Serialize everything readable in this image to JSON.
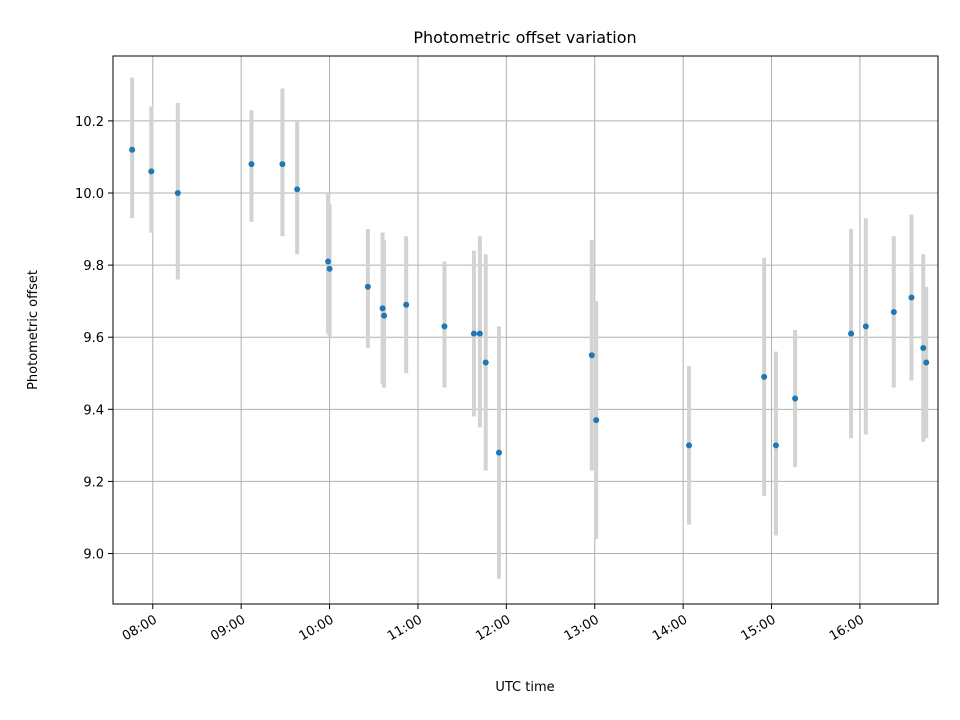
{
  "chart_data": {
    "type": "scatter",
    "title": "Photometric offset variation",
    "xlabel": "UTC time",
    "ylabel": "Photometric offset",
    "xlim": [
      "07:33",
      "16:53"
    ],
    "ylim": [
      8.86,
      10.38
    ],
    "grid": true,
    "xticks": [
      "08:00",
      "09:00",
      "10:00",
      "11:00",
      "12:00",
      "13:00",
      "14:00",
      "15:00",
      "16:00"
    ],
    "yticks": [
      9.0,
      9.2,
      9.4,
      9.6,
      9.8,
      10.0,
      10.2
    ],
    "ytick_labels": [
      "9.0",
      "9.2",
      "9.4",
      "9.6",
      "9.8",
      "10.0",
      "10.2"
    ],
    "series": [
      {
        "marker_color": "#1f77b4",
        "errorbar_color": "#d3d3d3",
        "points": [
          {
            "x": "07:46",
            "y": 10.12,
            "yerr_low": 9.93,
            "yerr_high": 10.32
          },
          {
            "x": "07:59",
            "y": 10.06,
            "yerr_low": 9.89,
            "yerr_high": 10.24
          },
          {
            "x": "08:17",
            "y": 10.0,
            "yerr_low": 9.76,
            "yerr_high": 10.25
          },
          {
            "x": "09:07",
            "y": 10.08,
            "yerr_low": 9.92,
            "yerr_high": 10.23
          },
          {
            "x": "09:28",
            "y": 10.08,
            "yerr_low": 9.88,
            "yerr_high": 10.29
          },
          {
            "x": "09:38",
            "y": 10.01,
            "yerr_low": 9.83,
            "yerr_high": 10.2
          },
          {
            "x": "09:59",
            "y": 9.81,
            "yerr_low": 9.61,
            "yerr_high": 10.0
          },
          {
            "x": "10:00",
            "y": 9.79,
            "yerr_low": 9.6,
            "yerr_high": 9.97
          },
          {
            "x": "10:26",
            "y": 9.74,
            "yerr_low": 9.57,
            "yerr_high": 9.9
          },
          {
            "x": "10:36",
            "y": 9.68,
            "yerr_low": 9.47,
            "yerr_high": 9.89
          },
          {
            "x": "10:37",
            "y": 9.66,
            "yerr_low": 9.46,
            "yerr_high": 9.87
          },
          {
            "x": "10:52",
            "y": 9.69,
            "yerr_low": 9.5,
            "yerr_high": 9.88
          },
          {
            "x": "11:18",
            "y": 9.63,
            "yerr_low": 9.46,
            "yerr_high": 9.81
          },
          {
            "x": "11:38",
            "y": 9.61,
            "yerr_low": 9.38,
            "yerr_high": 9.84
          },
          {
            "x": "11:42",
            "y": 9.61,
            "yerr_low": 9.35,
            "yerr_high": 9.88
          },
          {
            "x": "11:46",
            "y": 9.53,
            "yerr_low": 9.23,
            "yerr_high": 9.83
          },
          {
            "x": "11:55",
            "y": 9.28,
            "yerr_low": 8.93,
            "yerr_high": 9.63
          },
          {
            "x": "12:58",
            "y": 9.55,
            "yerr_low": 9.23,
            "yerr_high": 9.87
          },
          {
            "x": "13:01",
            "y": 9.37,
            "yerr_low": 9.04,
            "yerr_high": 9.7
          },
          {
            "x": "14:04",
            "y": 9.3,
            "yerr_low": 9.08,
            "yerr_high": 9.52
          },
          {
            "x": "14:55",
            "y": 9.49,
            "yerr_low": 9.16,
            "yerr_high": 9.82
          },
          {
            "x": "15:03",
            "y": 9.3,
            "yerr_low": 9.05,
            "yerr_high": 9.56
          },
          {
            "x": "15:16",
            "y": 9.43,
            "yerr_low": 9.24,
            "yerr_high": 9.62
          },
          {
            "x": "15:54",
            "y": 9.61,
            "yerr_low": 9.32,
            "yerr_high": 9.9
          },
          {
            "x": "16:04",
            "y": 9.63,
            "yerr_low": 9.33,
            "yerr_high": 9.93
          },
          {
            "x": "16:23",
            "y": 9.67,
            "yerr_low": 9.46,
            "yerr_high": 9.88
          },
          {
            "x": "16:35",
            "y": 9.71,
            "yerr_low": 9.48,
            "yerr_high": 9.94
          },
          {
            "x": "16:43",
            "y": 9.57,
            "yerr_low": 9.31,
            "yerr_high": 9.83
          },
          {
            "x": "16:45",
            "y": 9.53,
            "yerr_low": 9.32,
            "yerr_high": 9.74
          }
        ]
      }
    ]
  }
}
